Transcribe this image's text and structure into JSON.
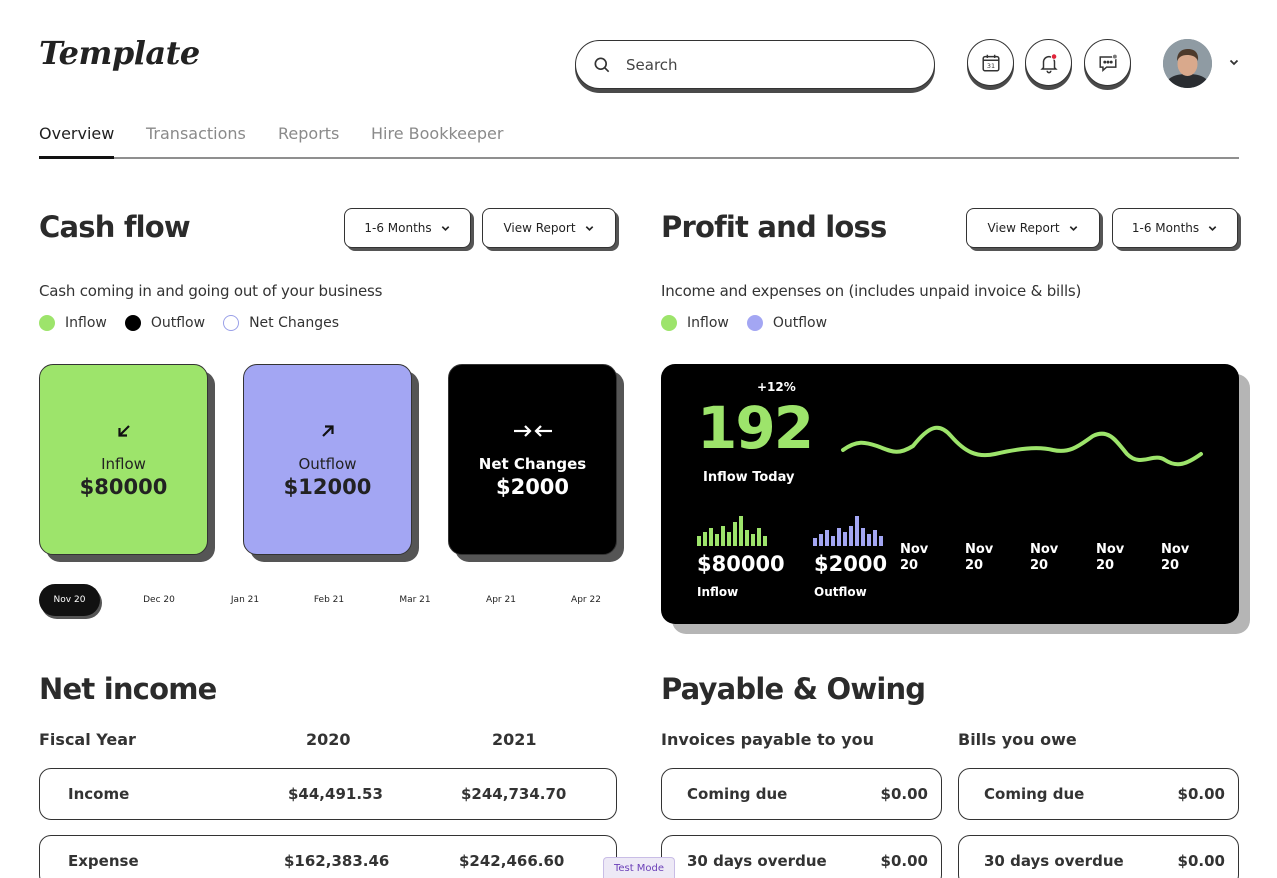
{
  "app": {
    "logo": "Template"
  },
  "search": {
    "placeholder": "Search"
  },
  "header": {
    "icons": [
      "calendar-icon",
      "bell-icon",
      "chat-icon"
    ],
    "calendar_day": "31"
  },
  "tabs": [
    {
      "label": "Overview",
      "active": true
    },
    {
      "label": "Transactions"
    },
    {
      "label": "Reports"
    },
    {
      "label": "Hire Bookkeeper"
    }
  ],
  "cashflow": {
    "title": "Cash flow",
    "period_dropdown": "1-6 Months",
    "report_dropdown": "View Report",
    "subtitle": "Cash coming in and going out of your business",
    "legend": [
      "Inflow",
      "Outflow",
      "Net Changes"
    ],
    "cards": [
      {
        "label": "Inflow",
        "amount": "$80000",
        "color": "#9de46b"
      },
      {
        "label": "Outflow",
        "amount": "$12000",
        "color": "#a3a6f3"
      },
      {
        "label": "Net Changes",
        "amount": "$2000",
        "color": "#000000"
      }
    ],
    "timeline": [
      "Nov 20",
      "Dec 20",
      "Jan 21",
      "Feb 21",
      "Mar 21",
      "Apr 21",
      "Apr 22"
    ]
  },
  "pl": {
    "title": "Profit and loss",
    "report_dropdown": "View Report",
    "period_dropdown": "1-6 Months",
    "subtitle": "Income and expenses on (includes unpaid invoice & bills)",
    "legend": [
      "Inflow",
      "Outflow"
    ],
    "big_number": "192",
    "change": "+12%",
    "big_label": "Inflow Today",
    "inflow_amount": "$80000",
    "inflow_label": "Inflow",
    "outflow_amount": "$2000",
    "outflow_label": "Outflow",
    "dates": [
      "Nov 20",
      "Nov 20",
      "Nov 20",
      "Nov 20",
      "Nov 20"
    ]
  },
  "net_income": {
    "title": "Net income",
    "header": {
      "col0": "Fiscal Year",
      "col1": "2020",
      "col2": "2021"
    },
    "rows": [
      {
        "label": "Income",
        "y2020": "$44,491.53",
        "y2021": "$244,734.70"
      },
      {
        "label": "Expense",
        "y2020": "$162,383.46",
        "y2021": "$242,466.60"
      }
    ]
  },
  "payable": {
    "title": "Payable & Owing",
    "invoices_title": "Invoices payable to you",
    "bills_title": "Bills you owe",
    "invoices": [
      {
        "label": "Coming due",
        "value": "$0.00"
      },
      {
        "label": "30 days overdue",
        "value": "$0.00"
      }
    ],
    "bills": [
      {
        "label": "Coming due",
        "value": "$0.00"
      },
      {
        "label": "30 days overdue",
        "value": "$0.00"
      }
    ]
  },
  "test_mode": "Test Mode"
}
